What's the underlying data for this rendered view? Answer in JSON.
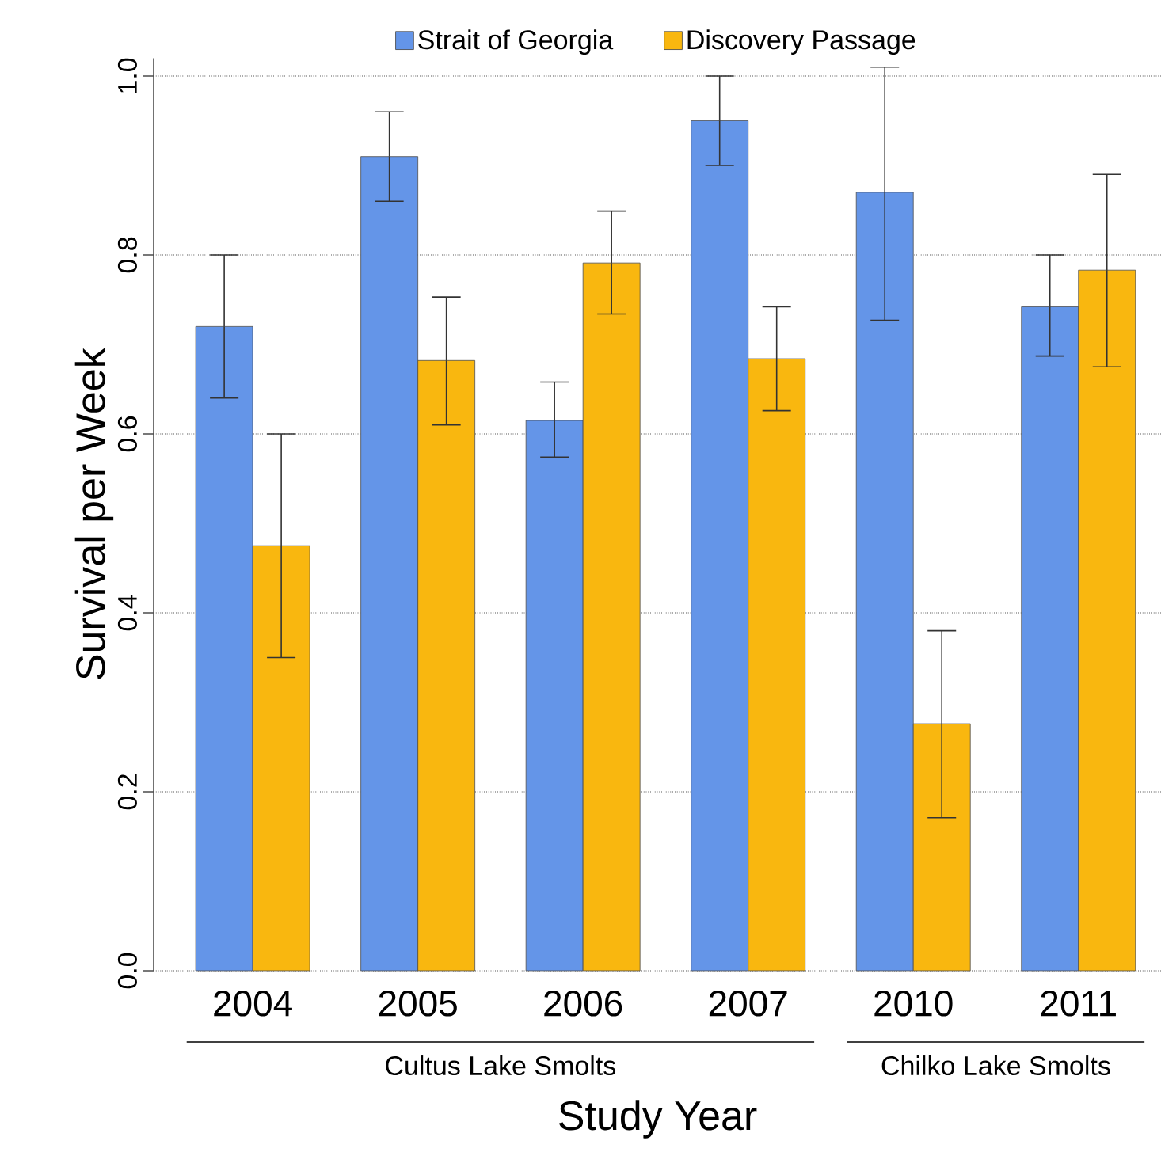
{
  "chart_data": {
    "type": "bar",
    "xlabel": "Study Year",
    "ylabel": "Survival per Week",
    "categories": [
      "2004",
      "2005",
      "2006",
      "2007",
      "2010",
      "2011"
    ],
    "series": [
      {
        "name": "Strait of Georgia",
        "color": "#6495e8",
        "values": [
          0.72,
          0.91,
          0.615,
          0.95,
          0.87,
          0.742
        ],
        "errors": [
          [
            0.64,
            0.8
          ],
          [
            0.86,
            0.96
          ],
          [
            0.574,
            0.658
          ],
          [
            0.9,
            1.0
          ],
          [
            0.727,
            1.01
          ],
          [
            0.687,
            0.8
          ]
        ]
      },
      {
        "name": "Discovery Passage",
        "color": "#f9b70f",
        "values": [
          0.475,
          0.682,
          0.791,
          0.684,
          0.276,
          0.783
        ],
        "errors": [
          [
            0.35,
            0.6
          ],
          [
            0.61,
            0.753
          ],
          [
            0.734,
            0.849
          ],
          [
            0.626,
            0.742
          ],
          [
            0.171,
            0.38
          ],
          [
            0.675,
            0.89
          ]
        ]
      }
    ],
    "ylim": [
      0,
      1.02
    ],
    "yticks": [
      {
        "value": 0,
        "label": "0.0"
      },
      {
        "value": 0.2,
        "label": "0.2"
      },
      {
        "value": 0.4,
        "label": "0.4"
      },
      {
        "value": 0.6,
        "label": "0.6"
      },
      {
        "value": 0.8,
        "label": "0.8"
      },
      {
        "value": 1,
        "label": "1.0"
      }
    ],
    "grid": "y",
    "legend": "top",
    "annotations": [
      "Cultus Lake Smolts",
      "Chilko Lake Smolts"
    ]
  }
}
